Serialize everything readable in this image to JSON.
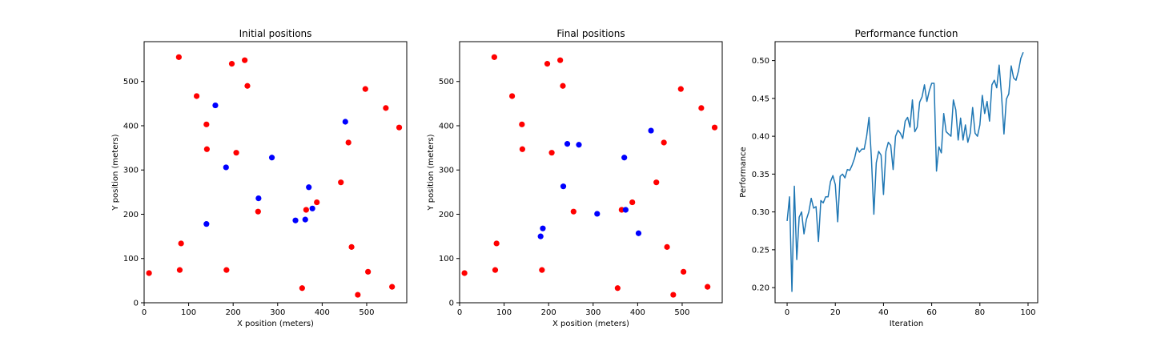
{
  "chart_data": [
    {
      "type": "scatter",
      "title": "Initial positions",
      "xlabel": "X position (meters)",
      "ylabel": "Y position (meters)",
      "xlim": [
        0,
        590
      ],
      "ylim": [
        0,
        590
      ],
      "xticks": [
        0,
        100,
        200,
        300,
        400,
        500
      ],
      "yticks": [
        0,
        100,
        200,
        300,
        400,
        500
      ],
      "grid": false,
      "series": [
        {
          "color": "#ff0000",
          "points": [
            [
              78,
              555
            ],
            [
              197,
              540
            ],
            [
              226,
              548
            ],
            [
              232,
              490
            ],
            [
              118,
              467
            ],
            [
              497,
              483
            ],
            [
              543,
              440
            ],
            [
              573,
              396
            ],
            [
              140,
              403
            ],
            [
              141,
              347
            ],
            [
              207,
              339
            ],
            [
              459,
              362
            ],
            [
              442,
              272
            ],
            [
              388,
              227
            ],
            [
              364,
              210
            ],
            [
              256,
              206
            ],
            [
              83,
              134
            ],
            [
              80,
              74
            ],
            [
              185,
              74
            ],
            [
              11,
              67
            ],
            [
              466,
              126
            ],
            [
              503,
              70
            ],
            [
              355,
              33
            ],
            [
              480,
              18
            ],
            [
              557,
              36
            ]
          ]
        },
        {
          "color": "#0000ff",
          "points": [
            [
              160,
              446
            ],
            [
              452,
              409
            ],
            [
              287,
              328
            ],
            [
              184,
              306
            ],
            [
              370,
              261
            ],
            [
              257,
              236
            ],
            [
              378,
              213
            ],
            [
              340,
              186
            ],
            [
              362,
              188
            ],
            [
              140,
              178
            ]
          ]
        }
      ]
    },
    {
      "type": "scatter",
      "title": "Final positions",
      "xlabel": "X position (meters)",
      "ylabel": "Y position (meters)",
      "xlim": [
        0,
        590
      ],
      "ylim": [
        0,
        590
      ],
      "xticks": [
        0,
        100,
        200,
        300,
        400,
        500
      ],
      "yticks": [
        0,
        100,
        200,
        300,
        400,
        500
      ],
      "grid": false,
      "series": [
        {
          "color": "#ff0000",
          "points": [
            [
              78,
              555
            ],
            [
              197,
              540
            ],
            [
              226,
              548
            ],
            [
              232,
              490
            ],
            [
              118,
              467
            ],
            [
              497,
              483
            ],
            [
              543,
              440
            ],
            [
              573,
              396
            ],
            [
              140,
              403
            ],
            [
              141,
              347
            ],
            [
              207,
              339
            ],
            [
              459,
              362
            ],
            [
              442,
              272
            ],
            [
              388,
              227
            ],
            [
              364,
              210
            ],
            [
              256,
              206
            ],
            [
              83,
              134
            ],
            [
              80,
              74
            ],
            [
              185,
              74
            ],
            [
              11,
              67
            ],
            [
              466,
              126
            ],
            [
              503,
              70
            ],
            [
              355,
              33
            ],
            [
              480,
              18
            ],
            [
              557,
              36
            ]
          ]
        },
        {
          "color": "#0000ff",
          "points": [
            [
              430,
              389
            ],
            [
              242,
              359
            ],
            [
              268,
              357
            ],
            [
              370,
              328
            ],
            [
              233,
              263
            ],
            [
              373,
              210
            ],
            [
              309,
              201
            ],
            [
              187,
              168
            ],
            [
              182,
              150
            ],
            [
              402,
              157
            ]
          ]
        }
      ]
    },
    {
      "type": "line",
      "title": "Performance function",
      "xlabel": "Iteration",
      "ylabel": "Performance",
      "xlim": [
        -5,
        104
      ],
      "ylim": [
        0.18,
        0.525
      ],
      "xticks": [
        0,
        20,
        40,
        60,
        80,
        100
      ],
      "yticks": [
        0.2,
        0.25,
        0.3,
        0.35,
        0.4,
        0.45,
        0.5
      ],
      "ytick_labels": [
        "0.20",
        "0.25",
        "0.30",
        "0.35",
        "0.40",
        "0.45",
        "0.50"
      ],
      "grid": false,
      "series": [
        {
          "color": "#1f77b4",
          "y": [
            0.288,
            0.32,
            0.195,
            0.334,
            0.237,
            0.293,
            0.3,
            0.271,
            0.29,
            0.3,
            0.318,
            0.305,
            0.307,
            0.261,
            0.315,
            0.312,
            0.32,
            0.32,
            0.34,
            0.348,
            0.336,
            0.287,
            0.347,
            0.35,
            0.345,
            0.356,
            0.355,
            0.362,
            0.371,
            0.385,
            0.379,
            0.383,
            0.383,
            0.4,
            0.425,
            0.37,
            0.297,
            0.365,
            0.38,
            0.375,
            0.323,
            0.38,
            0.392,
            0.388,
            0.356,
            0.4,
            0.408,
            0.404,
            0.397,
            0.42,
            0.425,
            0.412,
            0.448,
            0.406,
            0.412,
            0.445,
            0.452,
            0.468,
            0.446,
            0.46,
            0.47,
            0.47,
            0.354,
            0.386,
            0.378,
            0.43,
            0.406,
            0.403,
            0.4,
            0.448,
            0.435,
            0.395,
            0.424,
            0.395,
            0.415,
            0.392,
            0.404,
            0.438,
            0.404,
            0.4,
            0.415,
            0.454,
            0.43,
            0.446,
            0.42,
            0.468,
            0.474,
            0.464,
            0.494,
            0.454,
            0.403,
            0.449,
            0.456,
            0.493,
            0.477,
            0.474,
            0.486,
            0.503,
            0.511
          ]
        }
      ]
    }
  ]
}
